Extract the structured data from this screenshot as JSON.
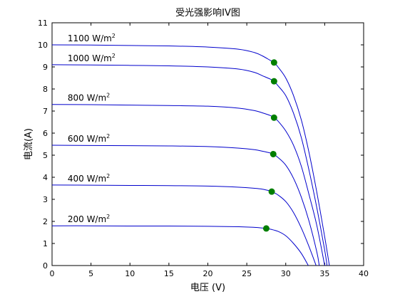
{
  "chart_data": {
    "type": "line",
    "title": "受光强影响IV图",
    "xlabel": "电压 (V)",
    "ylabel": "电流(A)",
    "xlim": [
      0,
      40
    ],
    "ylim": [
      0,
      11
    ],
    "xticks": [
      "0",
      "5",
      "10",
      "15",
      "20",
      "25",
      "30",
      "35",
      "40"
    ],
    "yticks": [
      "0",
      "1",
      "2",
      "3",
      "4",
      "5",
      "6",
      "7",
      "8",
      "9",
      "10",
      "11"
    ],
    "grid": false,
    "line_color": "#0000cc",
    "marker_color": "#007f00",
    "series": [
      {
        "label_text": "1100 W/m",
        "label_sup": "2",
        "isc": 10.0,
        "voc": 35.6,
        "mpp": [
          28.5,
          9.2
        ],
        "points": [
          [
            0,
            10.0
          ],
          [
            5,
            9.99
          ],
          [
            10,
            9.97
          ],
          [
            15,
            9.95
          ],
          [
            20,
            9.9
          ],
          [
            24,
            9.8
          ],
          [
            26,
            9.65
          ],
          [
            27,
            9.5
          ],
          [
            28,
            9.3
          ],
          [
            28.5,
            9.2
          ],
          [
            29,
            9.0
          ],
          [
            30,
            8.5
          ],
          [
            31,
            7.7
          ],
          [
            32,
            6.6
          ],
          [
            33,
            5.1
          ],
          [
            34,
            3.3
          ],
          [
            35,
            1.3
          ],
          [
            35.6,
            0
          ]
        ]
      },
      {
        "label_text": "1000 W/m",
        "label_sup": "2",
        "isc": 9.1,
        "voc": 35.3,
        "mpp": [
          28.5,
          8.35
        ],
        "points": [
          [
            0,
            9.1
          ],
          [
            5,
            9.09
          ],
          [
            10,
            9.07
          ],
          [
            15,
            9.05
          ],
          [
            20,
            9.0
          ],
          [
            24,
            8.9
          ],
          [
            26,
            8.75
          ],
          [
            27,
            8.6
          ],
          [
            28,
            8.45
          ],
          [
            28.5,
            8.35
          ],
          [
            29,
            8.15
          ],
          [
            30,
            7.7
          ],
          [
            31,
            6.9
          ],
          [
            32,
            5.8
          ],
          [
            33,
            4.3
          ],
          [
            34,
            2.6
          ],
          [
            35,
            0.7
          ],
          [
            35.3,
            0
          ]
        ]
      },
      {
        "label_text": "800 W/m",
        "label_sup": "2",
        "isc": 7.3,
        "voc": 35.0,
        "mpp": [
          28.5,
          6.7
        ],
        "points": [
          [
            0,
            7.3
          ],
          [
            5,
            7.29
          ],
          [
            10,
            7.27
          ],
          [
            15,
            7.25
          ],
          [
            20,
            7.22
          ],
          [
            24,
            7.13
          ],
          [
            26,
            7.02
          ],
          [
            27,
            6.92
          ],
          [
            28,
            6.8
          ],
          [
            28.5,
            6.7
          ],
          [
            29,
            6.55
          ],
          [
            30,
            6.1
          ],
          [
            31,
            5.45
          ],
          [
            32,
            4.5
          ],
          [
            33,
            3.2
          ],
          [
            34,
            1.8
          ],
          [
            35,
            0
          ]
        ]
      },
      {
        "label_text": "600 W/m",
        "label_sup": "2",
        "isc": 5.45,
        "voc": 34.3,
        "mpp": [
          28.4,
          5.05
        ],
        "points": [
          [
            0,
            5.45
          ],
          [
            5,
            5.44
          ],
          [
            10,
            5.43
          ],
          [
            15,
            5.42
          ],
          [
            20,
            5.39
          ],
          [
            24,
            5.32
          ],
          [
            26,
            5.25
          ],
          [
            27,
            5.18
          ],
          [
            28,
            5.1
          ],
          [
            28.4,
            5.05
          ],
          [
            29,
            4.9
          ],
          [
            30,
            4.55
          ],
          [
            31,
            3.95
          ],
          [
            32,
            3.1
          ],
          [
            33,
            2.0
          ],
          [
            34,
            0.6
          ],
          [
            34.3,
            0
          ]
        ]
      },
      {
        "label_text": "400 W/m",
        "label_sup": "2",
        "isc": 3.65,
        "voc": 33.9,
        "mpp": [
          28.2,
          3.35
        ],
        "points": [
          [
            0,
            3.65
          ],
          [
            5,
            3.64
          ],
          [
            10,
            3.63
          ],
          [
            15,
            3.62
          ],
          [
            20,
            3.6
          ],
          [
            24,
            3.55
          ],
          [
            26,
            3.5
          ],
          [
            27,
            3.46
          ],
          [
            28,
            3.38
          ],
          [
            28.2,
            3.35
          ],
          [
            29,
            3.2
          ],
          [
            30,
            2.9
          ],
          [
            31,
            2.4
          ],
          [
            32,
            1.7
          ],
          [
            33,
            0.85
          ],
          [
            33.9,
            0
          ]
        ]
      },
      {
        "label_text": "200 W/m",
        "label_sup": "2",
        "isc": 1.8,
        "voc": 32.9,
        "mpp": [
          27.5,
          1.68
        ],
        "points": [
          [
            0,
            1.8
          ],
          [
            5,
            1.8
          ],
          [
            10,
            1.79
          ],
          [
            15,
            1.79
          ],
          [
            20,
            1.78
          ],
          [
            24,
            1.76
          ],
          [
            26,
            1.73
          ],
          [
            27,
            1.7
          ],
          [
            27.5,
            1.68
          ],
          [
            28,
            1.65
          ],
          [
            29,
            1.55
          ],
          [
            30,
            1.35
          ],
          [
            31,
            1.0
          ],
          [
            32,
            0.55
          ],
          [
            32.9,
            0
          ]
        ]
      }
    ]
  }
}
